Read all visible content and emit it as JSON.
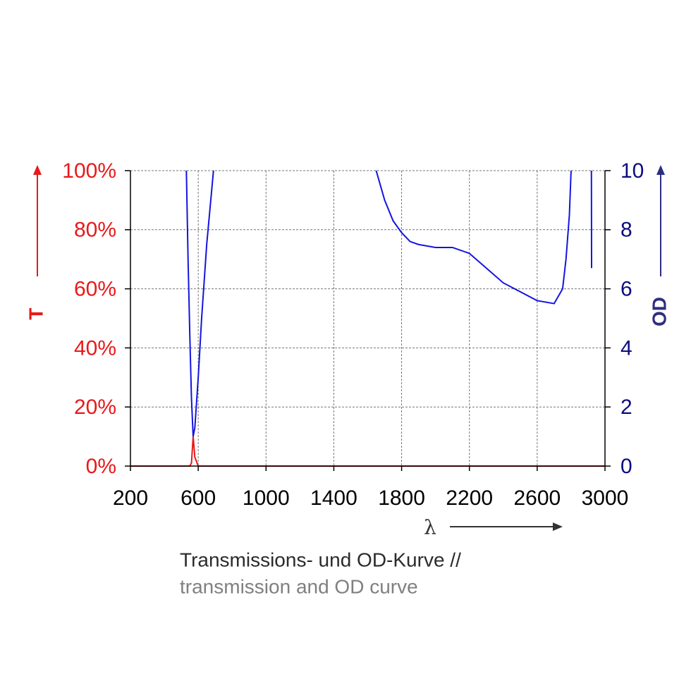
{
  "chart_data": {
    "type": "line",
    "x_label": "λ",
    "y_label": "T",
    "y2_label": "OD",
    "caption": [
      "Transmissions- und OD-Kurve //",
      "transmission and OD curve"
    ],
    "x": [
      200,
      530,
      540,
      550,
      560,
      570,
      580,
      600,
      620,
      650,
      690,
      1000,
      1650,
      1700,
      1750,
      1800,
      1850,
      1900,
      2000,
      2100,
      2200,
      2300,
      2400,
      2500,
      2600,
      2700,
      2750,
      2770,
      2790,
      2800,
      2850,
      2920,
      2921,
      3000
    ],
    "series": [
      {
        "name": "T",
        "color": "#e8191a",
        "values": [
          0,
          0,
          0,
          0,
          1,
          10,
          3,
          0,
          0,
          0,
          0,
          0,
          0,
          0,
          0,
          0,
          0,
          0,
          0,
          0,
          0,
          0,
          0,
          0,
          0,
          0,
          0,
          0,
          0,
          0,
          0,
          0,
          0,
          0
        ]
      },
      {
        "name": "OD",
        "color": "#1414e0",
        "axis": "y2",
        "values": [
          null,
          10,
          7,
          4.5,
          2.3,
          1,
          1.3,
          3,
          5,
          7.5,
          10,
          null,
          10,
          9,
          8.3,
          7.9,
          7.6,
          7.5,
          7.4,
          7.4,
          7.2,
          6.7,
          6.2,
          5.9,
          5.6,
          5.5,
          6,
          7,
          8.5,
          10,
          null,
          10,
          6.7,
          null
        ]
      }
    ],
    "xlim": [
      200,
      3000
    ],
    "xticks": [
      200,
      600,
      1000,
      1400,
      1800,
      2200,
      2600,
      3000
    ],
    "ylim": [
      0,
      100
    ],
    "yticks": [
      {
        "value": 0,
        "label": "0%"
      },
      {
        "value": 20,
        "label": "20%"
      },
      {
        "value": 40,
        "label": "40%"
      },
      {
        "value": 60,
        "label": "60%"
      },
      {
        "value": 80,
        "label": "80%"
      },
      {
        "value": 100,
        "label": "100%"
      }
    ],
    "y2lim": [
      0,
      10
    ],
    "y2ticks": [
      0,
      2,
      4,
      6,
      8,
      10
    ],
    "grid": true
  }
}
